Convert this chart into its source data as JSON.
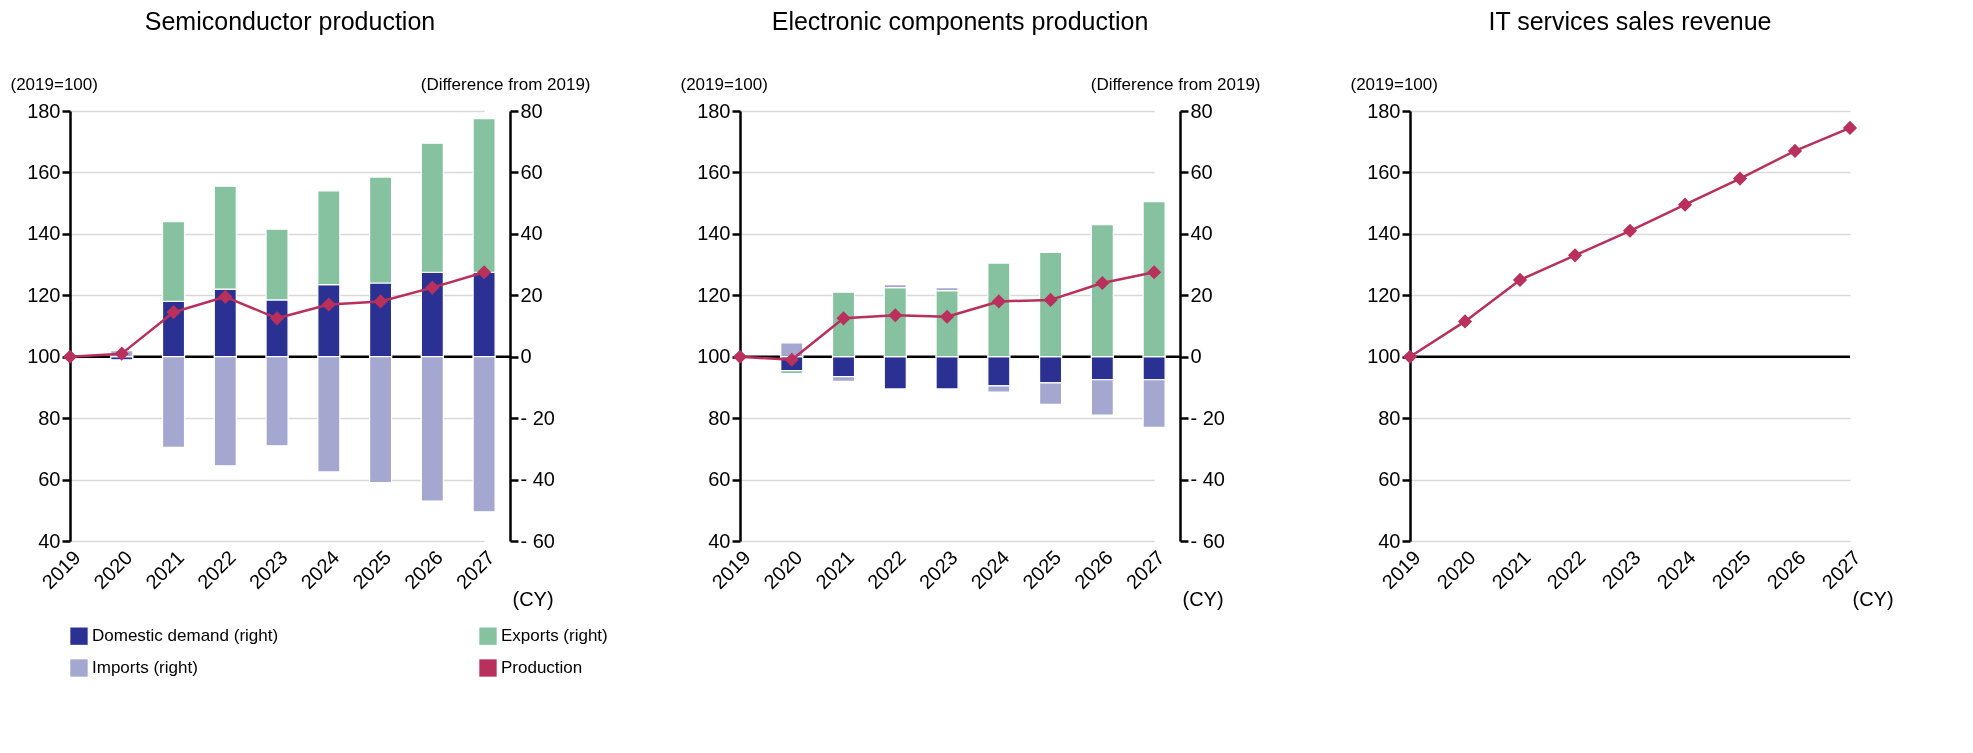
{
  "chart_data": [
    {
      "type": "bar",
      "title": "Semiconductor production",
      "xlabel": "(CY)",
      "ylabel": "(2019=100)",
      "y2label": "(Difference from 2019)",
      "categories": [
        "2019",
        "2020",
        "2021",
        "2022",
        "2023",
        "2024",
        "2025",
        "2026",
        "2027"
      ],
      "stacked": true,
      "grid": "y",
      "legend": "bottom",
      "marker": "diamond",
      "ylim": [
        40,
        180
      ],
      "yticks": [
        40,
        60,
        80,
        100,
        120,
        140,
        160,
        180
      ],
      "y2lim": [
        -60,
        80
      ],
      "y2ticks": [
        {
          "value": -60,
          "label": "- 60"
        },
        {
          "value": -40,
          "label": "- 40"
        },
        {
          "value": -20,
          "label": "- 20"
        },
        0,
        20,
        40,
        60,
        80
      ],
      "ref_lines": [
        {
          "axis": "y",
          "value": 100,
          "color": "#000000"
        }
      ],
      "series": [
        {
          "name": "Domestic demand (right)",
          "color": "#2b3192",
          "axis": "y2",
          "values": [
            null,
            -1,
            18,
            22,
            18.5,
            23.5,
            24,
            27.5,
            27.5
          ]
        },
        {
          "name": "Exports (right)",
          "color": "#86c2a0",
          "axis": "y2",
          "values": [
            null,
            null,
            26,
            33.5,
            23,
            30.5,
            34.5,
            42,
            50
          ]
        },
        {
          "name": "Imports (right)",
          "color": "#a4a8d1",
          "axis": "y2",
          "values": [
            null,
            2,
            -29.5,
            -35.5,
            -29,
            -37.5,
            -41,
            -47,
            -50.5
          ]
        },
        {
          "name": "Production",
          "type": "line",
          "color": "#b8305b",
          "values": [
            100,
            101,
            114.5,
            119.5,
            112.5,
            117,
            118,
            122.5,
            127.5
          ]
        }
      ]
    },
    {
      "type": "bar",
      "title": "Electronic components production",
      "xlabel": "(CY)",
      "ylabel": "(2019=100)",
      "y2label": "(Difference from 2019)",
      "categories": [
        "2019",
        "2020",
        "2021",
        "2022",
        "2023",
        "2024",
        "2025",
        "2026",
        "2027"
      ],
      "stacked": true,
      "grid": "y",
      "marker": "diamond",
      "ylim": [
        40,
        180
      ],
      "yticks": [
        40,
        60,
        80,
        100,
        120,
        140,
        160,
        180
      ],
      "y2lim": [
        -60,
        80
      ],
      "y2ticks": [
        {
          "value": -60,
          "label": "- 60"
        },
        {
          "value": -40,
          "label": "- 40"
        },
        {
          "value": -20,
          "label": "- 20"
        },
        0,
        20,
        40,
        60,
        80
      ],
      "ref_lines": [
        {
          "axis": "y",
          "value": 100,
          "color": "#000000"
        }
      ],
      "series": [
        {
          "name": "Domestic demand (right)",
          "color": "#2b3192",
          "axis": "y2",
          "values": [
            null,
            -4.5,
            -6.5,
            -10.5,
            -10.5,
            -9.5,
            -8.5,
            -7.5,
            -7.5
          ]
        },
        {
          "name": "Exports (right)",
          "color": "#86c2a0",
          "axis": "y2",
          "values": [
            null,
            -1,
            21,
            22.5,
            21.5,
            30.5,
            34,
            43,
            50.5
          ]
        },
        {
          "name": "Imports (right)",
          "color": "#a4a8d1",
          "axis": "y2",
          "values": [
            null,
            4.5,
            -1.5,
            1,
            1,
            -2,
            -7,
            -11.5,
            -15.5
          ]
        },
        {
          "name": "Production",
          "type": "line",
          "color": "#b8305b",
          "values": [
            100,
            99,
            112.5,
            113.5,
            113,
            118,
            118.5,
            124,
            127.5
          ]
        }
      ]
    },
    {
      "type": "line",
      "title": "IT services sales revenue",
      "xlabel": "(CY)",
      "ylabel": "(2019=100)",
      "categories": [
        "2019",
        "2020",
        "2021",
        "2022",
        "2023",
        "2024",
        "2025",
        "2026",
        "2027"
      ],
      "grid": "y",
      "marker": "diamond",
      "ylim": [
        40,
        180
      ],
      "yticks": [
        40,
        60,
        80,
        100,
        120,
        140,
        160,
        180
      ],
      "ref_lines": [
        {
          "axis": "y",
          "value": 100,
          "color": "#000000"
        }
      ],
      "series": [
        {
          "color": "#b8305b",
          "values": [
            100,
            111.5,
            125,
            133,
            141,
            149.5,
            158,
            167,
            174.5
          ]
        }
      ]
    }
  ]
}
